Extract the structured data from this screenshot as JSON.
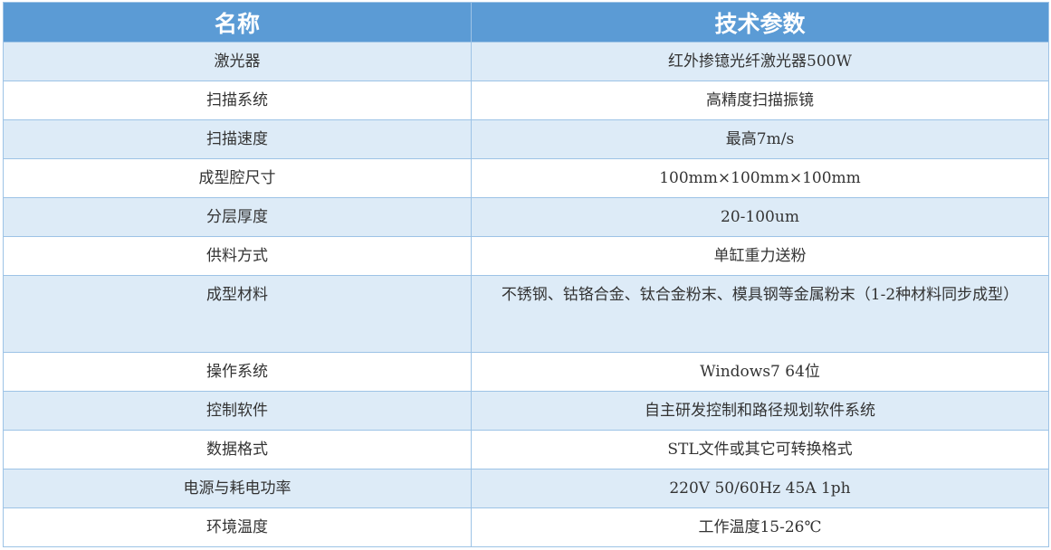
{
  "header": {
    "name": "名称",
    "params": "技术参数"
  },
  "rows": [
    {
      "name": "激光器",
      "value": "红外掺镱光纤激光器500W"
    },
    {
      "name": "扫描系统",
      "value": "高精度扫描振镜"
    },
    {
      "name": "扫描速度",
      "value": "最高7m/s"
    },
    {
      "name": "成型腔尺寸",
      "value": "100mm×100mm×100mm"
    },
    {
      "name": "分层厚度",
      "value": "20-100um"
    },
    {
      "name": "供料方式",
      "value": "单缸重力送粉"
    },
    {
      "name": "成型材料",
      "value": "不锈钢、钴铬合金、钛合金粉末、模具钢等金属粉末（1-2种材料同步成型）"
    },
    {
      "name": "操作系统",
      "value": "Windows7 64位"
    },
    {
      "name": "控制软件",
      "value": "自主研发控制和路径规划软件系统"
    },
    {
      "name": "数据格式",
      "value": "STL文件或其它可转换格式"
    },
    {
      "name": "电源与耗电功率",
      "value": "220V 50/60Hz 45A 1ph"
    },
    {
      "name": "环境温度",
      "value": "工作温度15-26℃"
    }
  ],
  "colors": {
    "header": "#5b9bd5",
    "alt_row": "#ddebf7",
    "border": "#9dc3e6"
  }
}
